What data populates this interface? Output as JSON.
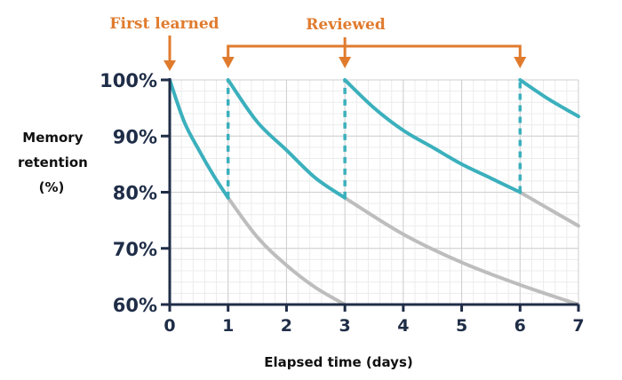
{
  "chart_data": {
    "type": "line",
    "title": "",
    "xlabel": "Elapsed time (days)",
    "ylabel_lines": [
      "Memory",
      "retention",
      "(%)"
    ],
    "xlim": [
      0,
      7
    ],
    "ylim": [
      60,
      100
    ],
    "x_ticks": [
      "0",
      "1",
      "2",
      "3",
      "4",
      "5",
      "6",
      "7"
    ],
    "x_tick_values": [
      0,
      1,
      2,
      3,
      4,
      5,
      6,
      7
    ],
    "y_ticks": [
      "60%",
      "70%",
      "80%",
      "90%",
      "100%"
    ],
    "y_tick_values": [
      60,
      70,
      80,
      90,
      100
    ],
    "grid": true,
    "annotations": {
      "first_learned": {
        "text": "First learned",
        "x": 0
      },
      "reviewed": {
        "text": "Reviewed",
        "x": [
          1,
          3,
          6
        ]
      }
    },
    "series": [
      {
        "role": "retention-with-reviews",
        "color": "#3bb0bd",
        "segments": [
          {
            "x": [
              0,
              0.25,
              0.5,
              0.75,
              1.0
            ],
            "y": [
              100,
              92.5,
              87.5,
              83,
              79
            ]
          },
          {
            "x": [
              1,
              1.5,
              2,
              2.5,
              3
            ],
            "y": [
              100,
              92.5,
              87.5,
              82.5,
              79
            ]
          },
          {
            "x": [
              3,
              3.5,
              4,
              4.5,
              5,
              5.5,
              6
            ],
            "y": [
              100,
              95,
              91,
              88,
              85,
              82.5,
              80
            ]
          },
          {
            "x": [
              6,
              6.5,
              7
            ],
            "y": [
              100,
              96.5,
              93.5
            ]
          }
        ],
        "review_jumps": [
          {
            "x": 1,
            "from": 79,
            "to": 100
          },
          {
            "x": 3,
            "from": 79,
            "to": 100
          },
          {
            "x": 6,
            "from": 80,
            "to": 100
          }
        ]
      },
      {
        "role": "forgetting-without-review",
        "color": "#bdbdbd",
        "segments": [
          {
            "x": [
              1,
              1.5,
              2,
              2.5,
              3
            ],
            "y": [
              79,
              72,
              67,
              63,
              60
            ]
          },
          {
            "x": [
              3,
              4,
              5,
              6,
              7
            ],
            "y": [
              79,
              72.5,
              67.5,
              63.5,
              60
            ]
          },
          {
            "x": [
              6,
              6.5,
              7
            ],
            "y": [
              80,
              77,
              74
            ]
          }
        ]
      }
    ]
  }
}
